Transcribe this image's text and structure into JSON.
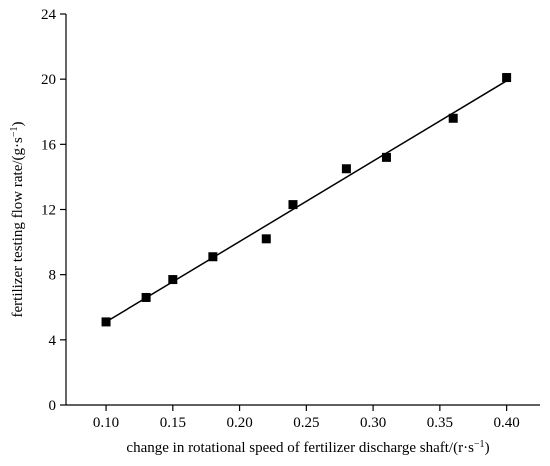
{
  "chart_data": {
    "type": "scatter",
    "xlabel_text": "change in rotational speed of fertilizer discharge shaft/(r·s",
    "xlabel_sup": "−1",
    "xlabel_tail": ")",
    "ylabel_text": "fertilizer testing flow rate/(g·s",
    "ylabel_sup": "−1",
    "ylabel_tail": ")",
    "xlim": [
      0.07,
      0.425
    ],
    "ylim": [
      0,
      24
    ],
    "x_ticks": [
      0.1,
      0.15,
      0.2,
      0.25,
      0.3,
      0.35,
      0.4
    ],
    "x_tick_labels": [
      "0.10",
      "0.15",
      "0.20",
      "0.25",
      "0.30",
      "0.35",
      "0.40"
    ],
    "y_ticks": [
      0,
      4,
      8,
      12,
      16,
      20,
      24
    ],
    "y_tick_labels": [
      "0",
      "4",
      "8",
      "12",
      "16",
      "20",
      "24"
    ],
    "points": [
      {
        "x": 0.1,
        "y": 5.1
      },
      {
        "x": 0.13,
        "y": 6.6
      },
      {
        "x": 0.15,
        "y": 7.7
      },
      {
        "x": 0.18,
        "y": 9.1
      },
      {
        "x": 0.22,
        "y": 10.2
      },
      {
        "x": 0.24,
        "y": 12.3
      },
      {
        "x": 0.28,
        "y": 14.5
      },
      {
        "x": 0.31,
        "y": 15.2
      },
      {
        "x": 0.36,
        "y": 17.6
      },
      {
        "x": 0.4,
        "y": 20.1
      }
    ],
    "fit_line": {
      "x_start": 0.1,
      "y_start": 5.1,
      "x_end": 0.4,
      "y_end": 19.9
    },
    "grid": false,
    "marker": "square",
    "color": "#000000"
  }
}
